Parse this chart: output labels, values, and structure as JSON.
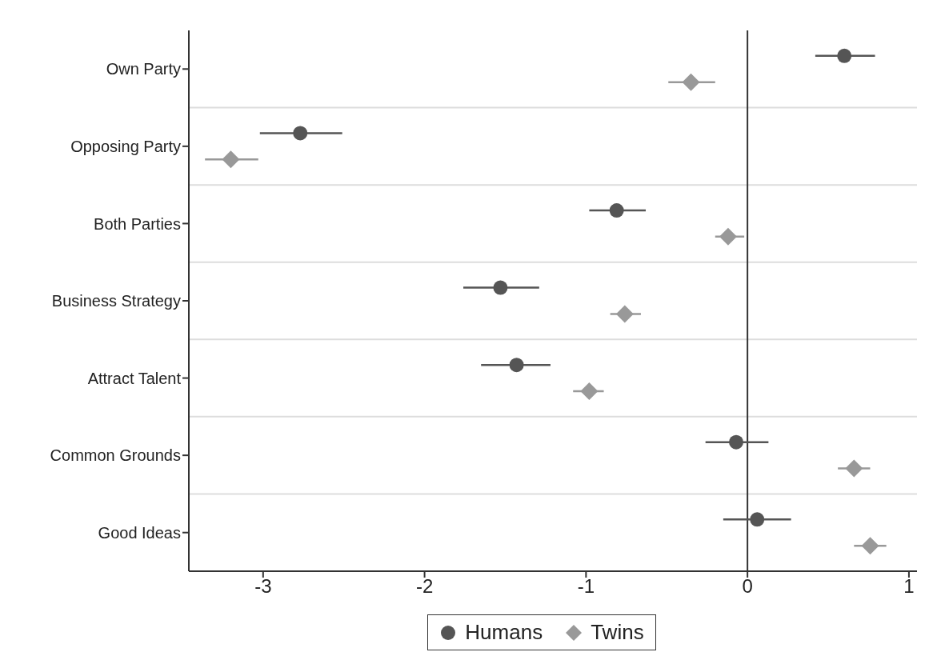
{
  "chart_data": {
    "type": "scatter",
    "orientation": "horizontal",
    "categories": [
      "Own Party",
      "Opposing Party",
      "Both Parties",
      "Business Strategy",
      "Attract Talent",
      "Common Grounds",
      "Good Ideas"
    ],
    "series": [
      {
        "name": "Humans",
        "color": "#555555",
        "marker": "circle",
        "values": [
          0.6,
          -2.77,
          -0.81,
          -1.53,
          -1.43,
          -0.07,
          0.06
        ],
        "errors": [
          [
            0.42,
            0.79
          ],
          [
            -3.02,
            -2.51
          ],
          [
            -0.98,
            -0.63
          ],
          [
            -1.76,
            -1.29
          ],
          [
            -1.65,
            -1.22
          ],
          [
            -0.26,
            0.13
          ],
          [
            -0.15,
            0.27
          ]
        ]
      },
      {
        "name": "Twins",
        "color": "#999999",
        "marker": "diamond",
        "values": [
          -0.35,
          -3.2,
          -0.12,
          -0.76,
          -0.98,
          0.66,
          0.76
        ],
        "errors": [
          [
            -0.49,
            -0.2
          ],
          [
            -3.36,
            -3.03
          ],
          [
            -0.2,
            -0.02
          ],
          [
            -0.85,
            -0.66
          ],
          [
            -1.08,
            -0.89
          ],
          [
            0.56,
            0.76
          ],
          [
            0.66,
            0.86
          ]
        ]
      }
    ],
    "xlim": [
      -3.46,
      1.05
    ],
    "xticks": [
      -3,
      -2,
      -1,
      0,
      1
    ],
    "ref_lines": [
      {
        "axis": "x",
        "value": 0,
        "color": "#333333"
      }
    ],
    "grid": "y",
    "legend": "bottom"
  }
}
